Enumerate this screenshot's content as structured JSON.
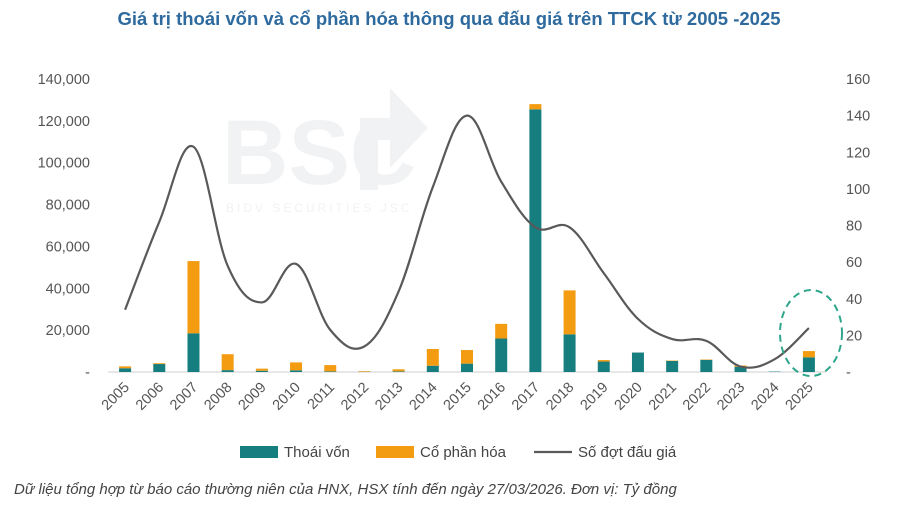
{
  "title": "Giá trị thoái vốn và cổ phần hóa thông qua đấu giá trên TTCK từ 2005 -2025",
  "footnote": "Dữ liệu tổng hợp từ báo cáo thường niên của HNX, HSX tính đến ngày 27/03/2026. Đơn vị: Tỷ đồng",
  "watermark": {
    "brand": "BSC",
    "tagline": "BIDV SECURITIES JSC"
  },
  "colors": {
    "thoai_von": "#177E80",
    "co_phan_hoa": "#F39C12",
    "so_dot": "#595959",
    "highlight": "#2FA58C"
  },
  "chart_data": {
    "type": "bar",
    "stacked": true,
    "categories": [
      "2005",
      "2006",
      "2007",
      "2008",
      "2009",
      "2010",
      "2011",
      "2012",
      "2013",
      "2014",
      "2015",
      "2016",
      "2017",
      "2018",
      "2019",
      "2020",
      "2021",
      "2022",
      "2023",
      "2024",
      "2025"
    ],
    "series": [
      {
        "name": "Thoái vốn",
        "type": "bar",
        "axis": "left",
        "values": [
          1800,
          3800,
          18500,
          900,
          600,
          800,
          300,
          100,
          300,
          3000,
          4000,
          16000,
          125500,
          18000,
          5000,
          9300,
          5300,
          5800,
          2500,
          200,
          7000
        ]
      },
      {
        "name": "Cổ phần hóa",
        "type": "bar",
        "axis": "left",
        "values": [
          900,
          400,
          34500,
          7600,
          1000,
          3800,
          3000,
          300,
          1000,
          8000,
          6500,
          7000,
          2500,
          21000,
          700,
          0,
          200,
          200,
          600,
          0,
          3000
        ]
      },
      {
        "name": "Số đợt đấu giá",
        "type": "line",
        "axis": "right",
        "values": [
          34,
          82,
          123,
          58,
          38,
          59,
          23,
          14,
          44,
          101,
          140,
          104,
          79,
          79,
          54,
          29,
          18,
          17,
          3,
          7,
          24
        ]
      }
    ],
    "ylim_left": [
      0,
      140000
    ],
    "yticks_left": [
      "-",
      "20,000",
      "40,000",
      "60,000",
      "80,000",
      "100,000",
      "120,000",
      "140,000"
    ],
    "ylim_right": [
      0,
      160
    ],
    "yticks_right": [
      "-",
      "20",
      "40",
      "60",
      "80",
      "100",
      "120",
      "140",
      "160"
    ],
    "legend": [
      "Thoái vốn",
      "Cổ phần hóa",
      "Số đợt đấu giá"
    ],
    "legend_position": "bottom"
  }
}
